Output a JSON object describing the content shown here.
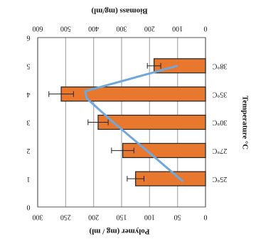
{
  "chart_data": {
    "type": "bar",
    "orientation": "horizontal",
    "text_rotation": "image is rotated 180 degrees; all text appears upside down",
    "categories": [
      "25°C",
      "27°C",
      "30°C",
      "35°C",
      "38°C"
    ],
    "category_label": "Temperature °C",
    "series": [
      {
        "name": "Polymer (mg / ml)",
        "type": "bar",
        "color": "#E8782D",
        "axis": "Polymer (mg / ml)",
        "values": [
          125,
          148,
          192,
          258,
          92
        ],
        "errors": [
          15,
          20,
          18,
          22,
          12
        ]
      },
      {
        "name": "Biomass (mg/ml)",
        "type": "line",
        "color": "#6FA8DC",
        "axis": "Biomass (mg/ml)",
        "points": [
          {
            "position": 0.9,
            "value": 80
          },
          {
            "position": 2.0,
            "value": 210
          },
          {
            "position": 3.0,
            "value": 330
          },
          {
            "position": 3.85,
            "value": 425
          },
          {
            "position": 4.1,
            "value": 430
          },
          {
            "position": 5.0,
            "value": 100
          }
        ]
      }
    ],
    "polymer_axis": {
      "label": "Polymer (mg / ml)",
      "ticks": [
        "0",
        "50",
        "100",
        "150",
        "200",
        "250",
        "300"
      ],
      "range": [
        0,
        300
      ]
    },
    "biomass_axis": {
      "label": "Biomass (mg/ml)",
      "ticks": [
        "0",
        "100",
        "200",
        "300",
        "400",
        "500",
        "600"
      ],
      "range": [
        0,
        600
      ]
    },
    "position_axis": {
      "ticks": [
        "0",
        "1",
        "2",
        "3",
        "4",
        "5",
        "6"
      ],
      "range": [
        0,
        6
      ]
    },
    "grid": true
  }
}
